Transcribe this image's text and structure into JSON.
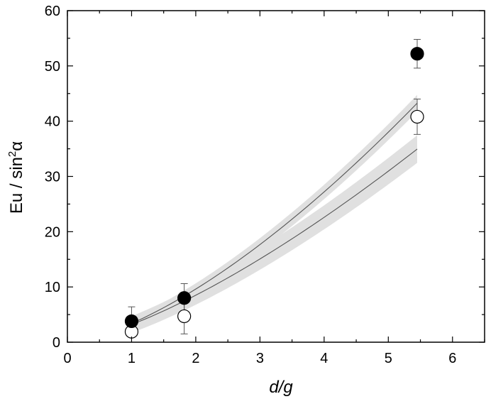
{
  "chart_data": {
    "type": "scatter",
    "xlabel": {
      "main": "d/g"
    },
    "ylabel": {
      "main": "Eu / sin",
      "superscript": "2",
      "symbol": "α"
    },
    "xlim": [
      0,
      6.5
    ],
    "ylim": [
      0,
      60
    ],
    "xticks": [
      "0",
      "1",
      "2",
      "3",
      "4",
      "5",
      "6"
    ],
    "yticks": [
      "0",
      "10",
      "20",
      "30",
      "40",
      "50",
      "60"
    ],
    "grid": false,
    "colors": {
      "band": "#e0e0e0",
      "curve": "#555555",
      "marker_edge": "#000000",
      "filled": "#000000",
      "open": "#ffffff"
    },
    "series": [
      {
        "marker": "filled-circle",
        "points": [
          {
            "x": 1.0,
            "y": 3.8,
            "err": 2.6
          },
          {
            "x": 1.82,
            "y": 8.0,
            "err": 2.6
          },
          {
            "x": 5.45,
            "y": 52.2,
            "err": 2.6
          }
        ],
        "fit": {
          "a": 3.4,
          "b": 1.5
        },
        "band_halfwidth": 1.5
      },
      {
        "marker": "open-circle",
        "points": [
          {
            "x": 1.0,
            "y": 1.9,
            "err": 0
          },
          {
            "x": 1.82,
            "y": 4.7,
            "err": 3.2
          },
          {
            "x": 5.45,
            "y": 40.8,
            "err": 3.2
          }
        ],
        "fit": {
          "a": 3.2,
          "b": 1.41
        },
        "band_halfwidth": 2.5
      }
    ]
  }
}
